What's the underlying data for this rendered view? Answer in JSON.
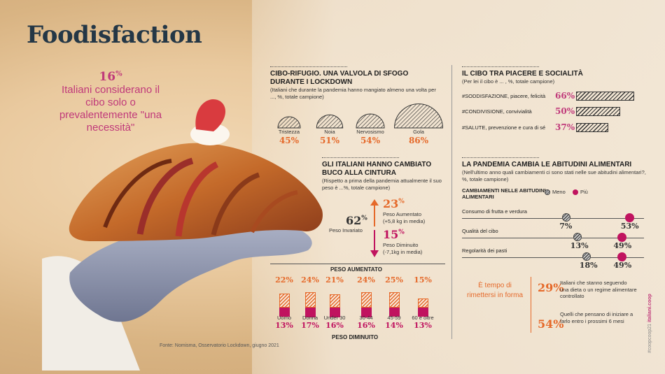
{
  "title": "Foodisfaction",
  "left_stat": {
    "value": "16",
    "unit": "%",
    "text": "Italiani considerano il cibo solo o prevalentemente \"una necessità\""
  },
  "rifugio": {
    "heading": "CIBO-RIFUGIO. UNA VALVOLA DI SFOGO DURANTE I LOCKDOWN",
    "subtitle": "(Italiani che durante la pandemia hanno mangiato almeno una volta per ..., %, totale campione)",
    "items": [
      {
        "label": "Tristezza",
        "value": "45%",
        "num": 45
      },
      {
        "label": "Noia",
        "value": "51%",
        "num": 51
      },
      {
        "label": "Nervosismo",
        "value": "54%",
        "num": 54
      },
      {
        "label": "Gola",
        "value": "86%",
        "num": 86
      }
    ]
  },
  "cintura": {
    "heading": "GLI ITALIANI HANNO CAMBIATO BUCO ALLA CINTURA",
    "subtitle": "(Rispetto a prima della pandemia attualmente il suo peso è ...%, totale campione)",
    "invariato_value": "62",
    "invariato_unit": "%",
    "invariato_label": "Peso Invariato",
    "aumentato_value": "23",
    "aumentato_unit": "%",
    "aumentato_label": "Peso Aumentato",
    "aumentato_note": "(+5,8 kg in media)",
    "diminuito_value": "15",
    "diminuito_unit": "%",
    "diminuito_label": "Peso Diminuito",
    "diminuito_note": "(-7,1kg in media)"
  },
  "peso": {
    "top_label": "PESO AUMENTATO",
    "bottom_label": "PESO DIMINUITO",
    "groups": [
      {
        "label": "Uomo",
        "up": "22%",
        "down": "13%",
        "up_num": 22,
        "down_num": 13
      },
      {
        "label": "Donna",
        "up": "24%",
        "down": "17%",
        "up_num": 24,
        "down_num": 17
      },
      {
        "label": "Under 30",
        "up": "21%",
        "down": "16%",
        "up_num": 21,
        "down_num": 16
      },
      {
        "label": "30-44",
        "up": "24%",
        "down": "16%",
        "up_num": 24,
        "down_num": 16
      },
      {
        "label": "45-59",
        "up": "25%",
        "down": "14%",
        "up_num": 25,
        "down_num": 14
      },
      {
        "label": "60 e oltre",
        "up": "15%",
        "down": "13%",
        "up_num": 15,
        "down_num": 13
      }
    ]
  },
  "piacere": {
    "heading": "IL CIBO TRA PIACERE E SOCIALITÀ",
    "subtitle": "(Per lei il cibo è ... , %, totale campione)",
    "items": [
      {
        "label": "#SODDISFAZIONE, piacere, felicità",
        "value": "66%",
        "num": 66
      },
      {
        "label": "#CONDIVISIONE, convivialità",
        "value": "50%",
        "num": 50
      },
      {
        "label": "#SALUTE, prevenzione e cura di sé",
        "value": "37%",
        "num": 37
      }
    ]
  },
  "abitudini": {
    "heading": "LA PANDEMIA CAMBIA LE ABITUDINI ALIMENTARI",
    "subtitle": "(Nell'ultimo anno quali cambiamenti ci sono stati nelle sue abitudini alimentari?, %, totale campione)",
    "col_heading": "CAMBIAMENTI NELLE ABITUDINI ALIMENTARI",
    "legend_less": "Meno",
    "legend_more": "Più",
    "rows": [
      {
        "label": "Consumo di frutta e verdura",
        "meno": "7%",
        "piu": "53%",
        "meno_num": 7,
        "piu_num": 53
      },
      {
        "label": "Qualità del cibo",
        "meno": "13%",
        "piu": "49%",
        "meno_num": 13,
        "piu_num": 49
      },
      {
        "label": "Regolarità dei pasti",
        "meno": "18%",
        "piu": "49%",
        "meno_num": 18,
        "piu_num": 49
      }
    ]
  },
  "forma": {
    "label": "È tempo di rimettersi in forma",
    "stat1": "29%",
    "text1": "Italiani che stanno seguendo una dieta o un regime alimentare controllato",
    "stat2": "54%",
    "text2": "Quelli che pensano di iniziare a farlo entro i prossimi 6 mesi"
  },
  "credit": "Fonte: Nomisma, Osservatorio Lockdown, giugno 2021",
  "side_tag_prefix": "#coopcoop21",
  "side_tag_brand": "italiani.coop",
  "colors": {
    "magenta": "#c0135f",
    "orange": "#e5692a",
    "navy": "#243746"
  }
}
